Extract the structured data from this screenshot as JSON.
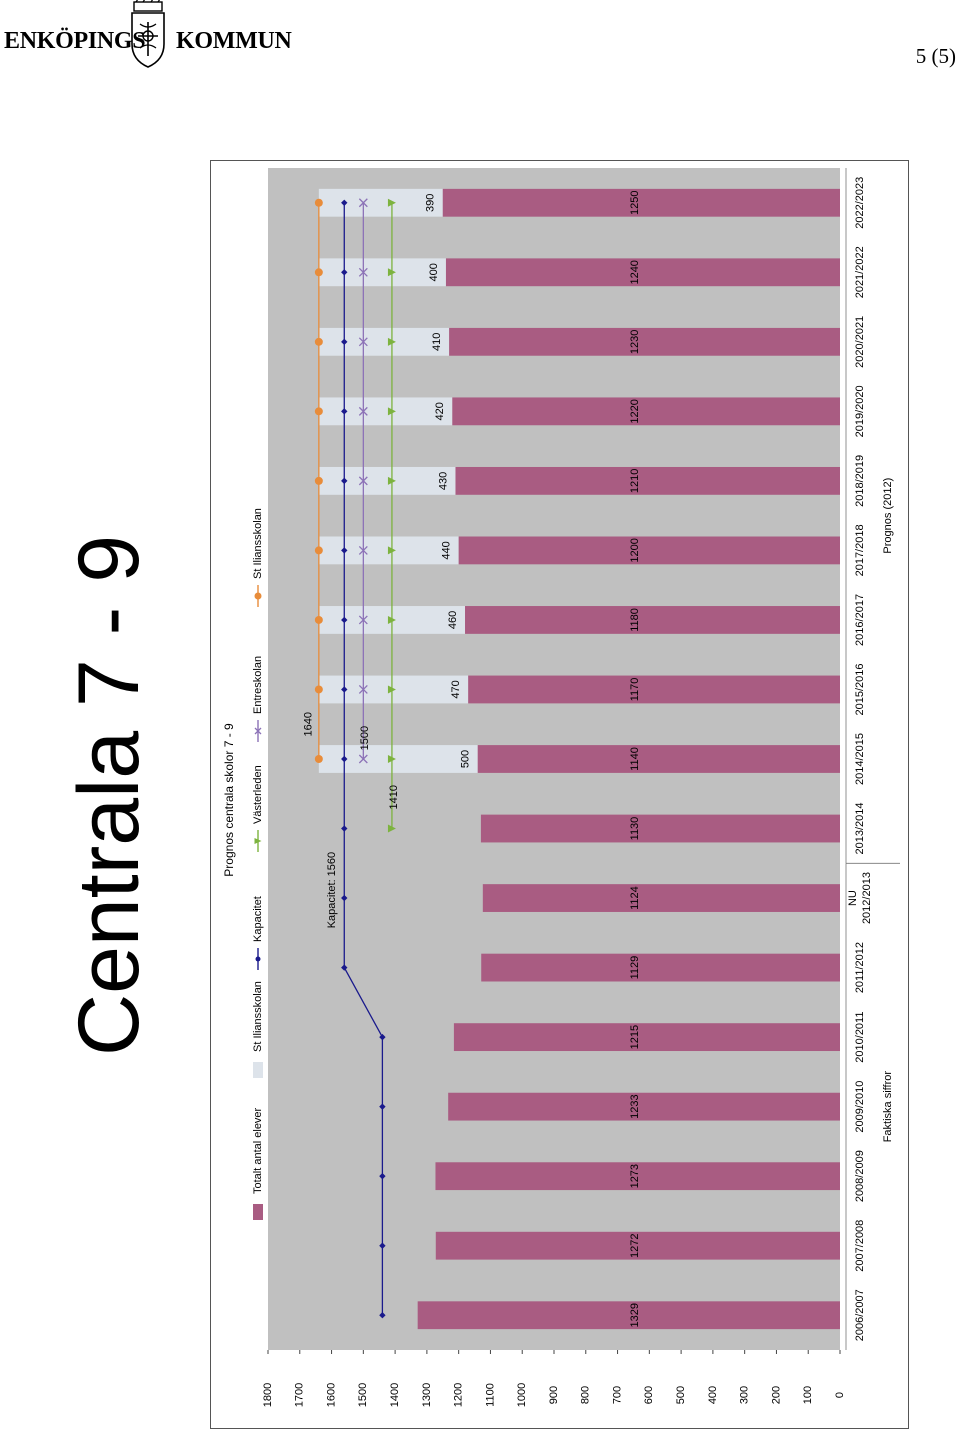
{
  "header": {
    "logo_left": "ENKÖPINGS",
    "logo_right": "KOMMUN",
    "page_number": "5 (5)"
  },
  "heading": "Centrala 7 - 9",
  "colors": {
    "bar": "#a95c82",
    "capacity_band": "#dde3ea",
    "plot_bg": "#c0c0c0",
    "kapacitet": "#1a1a8c",
    "vasterleden": "#7db33f",
    "entreskolan": "#8c72b7",
    "st_iliansskolan": "#e88c3a"
  },
  "chart_data": {
    "type": "bar",
    "title": "Prognos centrala skolor 7 - 9",
    "ylim": [
      0,
      1800
    ],
    "yticks": [
      0,
      100,
      200,
      300,
      400,
      500,
      600,
      700,
      800,
      900,
      1000,
      1100,
      1200,
      1300,
      1400,
      1500,
      1600,
      1700,
      1800
    ],
    "grid": false,
    "legend_position": "top",
    "categories": [
      "2006/2007",
      "2007/2008",
      "2008/2009",
      "2009/2010",
      "2010/2011",
      "2011/2012",
      "2012/2013",
      "2013/2014",
      "2014/2015",
      "2015/2016",
      "2016/2017",
      "2017/2018",
      "2018/2019",
      "2019/2020",
      "2020/2021",
      "2021/2022",
      "2022/2023"
    ],
    "category_prefix": {
      "index": 6,
      "text": "NU"
    },
    "group_labels": [
      {
        "text": "Faktiska siffror",
        "from": 0,
        "to": 6
      },
      {
        "text": "Prognos (2012)",
        "from": 7,
        "to": 16
      }
    ],
    "series": [
      {
        "name": "Totalt antal elever",
        "kind": "bar",
        "values": [
          1329,
          1272,
          1273,
          1233,
          1215,
          1129,
          1124,
          1130,
          1140,
          1170,
          1180,
          1200,
          1210,
          1220,
          1230,
          1240,
          1250
        ]
      },
      {
        "name": "St Iliansskolan",
        "kind": "stacked-gap",
        "values": [
          null,
          null,
          null,
          null,
          null,
          null,
          null,
          null,
          500,
          470,
          460,
          440,
          430,
          420,
          410,
          400,
          390
        ]
      },
      {
        "name": "Kapacitet",
        "kind": "line",
        "values": [
          1440,
          1440,
          1440,
          1440,
          1440,
          1560,
          1560,
          1560,
          1560,
          1560,
          1560,
          1560,
          1560,
          1560,
          1560,
          1560,
          1560
        ]
      },
      {
        "name": "Västerleden",
        "kind": "line",
        "values": [
          null,
          null,
          null,
          null,
          null,
          null,
          null,
          1410,
          1410,
          1410,
          1410,
          1410,
          1410,
          1410,
          1410,
          1410,
          1410
        ]
      },
      {
        "name": "Entreskolan",
        "kind": "line",
        "values": [
          null,
          null,
          null,
          null,
          null,
          null,
          null,
          null,
          1500,
          1500,
          1500,
          1500,
          1500,
          1500,
          1500,
          1500,
          1500
        ]
      },
      {
        "name": "St Iliansskolan",
        "kind": "line",
        "values": [
          null,
          null,
          null,
          null,
          null,
          null,
          null,
          null,
          1640,
          1640,
          1640,
          1640,
          1640,
          1640,
          1640,
          1640,
          1640
        ]
      }
    ],
    "legend": [
      "Totalt antal elever",
      "St Iliansskolan",
      "Kapacitet",
      "Västerleden",
      "Entreskolan",
      "St Iliansskolan"
    ],
    "annotations": [
      "Kapacitet: 1560",
      "1640",
      "1500",
      "1410"
    ]
  }
}
